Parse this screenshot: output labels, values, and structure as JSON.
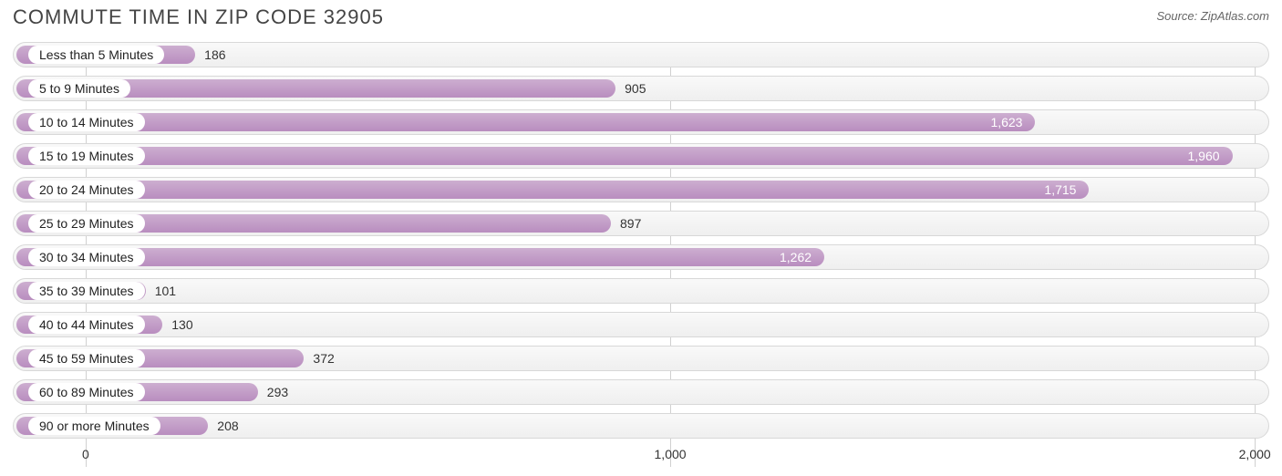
{
  "title": "COMMUTE TIME IN ZIP CODE 32905",
  "source": "Source: ZipAtlas.com",
  "chart": {
    "type": "bar-horizontal",
    "background_color": "#ffffff",
    "row_track_gradient": [
      "#f9f9f9",
      "#efefef"
    ],
    "row_border_color": "#d8d8d8",
    "bar_gradient": [
      "#cdaed0",
      "#b98dbf"
    ],
    "grid_color": "#d0d0d0",
    "category_label_bg": "#ffffff",
    "category_label_color": "#222222",
    "value_label_color_inside": "#ffffff",
    "value_label_color_outside": "#333333",
    "font_size_title": 22,
    "font_size_labels": 14,
    "font_size_source": 13,
    "x_scale": {
      "min": -120,
      "max": 2020
    },
    "x_ticks": [
      {
        "value": 0,
        "label": "0"
      },
      {
        "value": 1000,
        "label": "1,000"
      },
      {
        "value": 2000,
        "label": "2,000"
      }
    ],
    "inside_label_threshold": 1000,
    "bars": [
      {
        "category": "Less than 5 Minutes",
        "value": 186,
        "display": "186"
      },
      {
        "category": "5 to 9 Minutes",
        "value": 905,
        "display": "905"
      },
      {
        "category": "10 to 14 Minutes",
        "value": 1623,
        "display": "1,623"
      },
      {
        "category": "15 to 19 Minutes",
        "value": 1960,
        "display": "1,960"
      },
      {
        "category": "20 to 24 Minutes",
        "value": 1715,
        "display": "1,715"
      },
      {
        "category": "25 to 29 Minutes",
        "value": 897,
        "display": "897"
      },
      {
        "category": "30 to 34 Minutes",
        "value": 1262,
        "display": "1,262"
      },
      {
        "category": "35 to 39 Minutes",
        "value": 101,
        "display": "101"
      },
      {
        "category": "40 to 44 Minutes",
        "value": 130,
        "display": "130"
      },
      {
        "category": "45 to 59 Minutes",
        "value": 372,
        "display": "372"
      },
      {
        "category": "60 to 89 Minutes",
        "value": 293,
        "display": "293"
      },
      {
        "category": "90 or more Minutes",
        "value": 208,
        "display": "208"
      }
    ]
  }
}
